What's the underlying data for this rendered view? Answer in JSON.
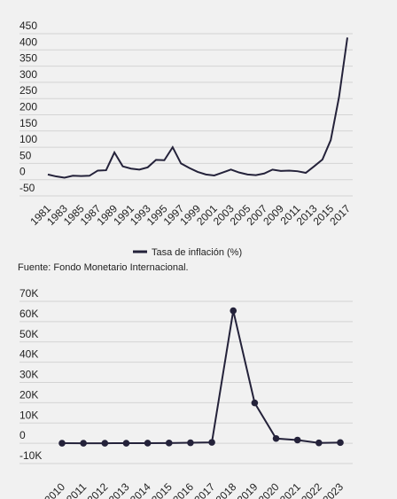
{
  "chart_data": [
    {
      "type": "line",
      "x": [
        1981,
        1982,
        1983,
        1984,
        1985,
        1986,
        1987,
        1988,
        1989,
        1990,
        1991,
        1992,
        1993,
        1994,
        1995,
        1996,
        1997,
        1998,
        1999,
        2000,
        2001,
        2002,
        2003,
        2004,
        2005,
        2006,
        2007,
        2008,
        2009,
        2010,
        2011,
        2012,
        2013,
        2014,
        2015,
        2016,
        2017
      ],
      "series": [
        {
          "name": "Tasa de inflación (%)",
          "color": "#24223a",
          "values": [
            16,
            10,
            6,
            12,
            11,
            12,
            28,
            29,
            84,
            41,
            34,
            31,
            38,
            61,
            60,
            100,
            50,
            36,
            24,
            16,
            13,
            22,
            31,
            22,
            16,
            14,
            19,
            31,
            27,
            28,
            26,
            21,
            41,
            62,
            122,
            255,
            438
          ]
        }
      ],
      "xlim": [
        1981,
        2017
      ],
      "xticks": [
        1981,
        1983,
        1985,
        1987,
        1989,
        1991,
        1993,
        1995,
        1997,
        1999,
        2001,
        2003,
        2005,
        2007,
        2009,
        2011,
        2013,
        2015,
        2017
      ],
      "ylim": [
        -50,
        450
      ],
      "yticks": [
        -50,
        0,
        50,
        100,
        150,
        200,
        250,
        300,
        350,
        400,
        450
      ],
      "grid": true,
      "legend": "bottom",
      "source": "Fuente: Fondo Monetario Internacional."
    },
    {
      "type": "line",
      "x": [
        2010,
        2011,
        2012,
        2013,
        2014,
        2015,
        2016,
        2017,
        2018,
        2019,
        2020,
        2021,
        2022,
        2023
      ],
      "series": [
        {
          "color": "#24223a",
          "values": [
            28,
            26,
            21,
            41,
            62,
            122,
            255,
            438,
            65374,
            19906,
            2355,
            1588,
            186,
            337
          ]
        }
      ],
      "xlim": [
        2010,
        2023
      ],
      "xticks": [
        2010,
        2011,
        2012,
        2013,
        2014,
        2015,
        2016,
        2017,
        2018,
        2019,
        2020,
        2021,
        2022,
        2023
      ],
      "ylim": [
        -10000,
        70000
      ],
      "yticks": [
        {
          "value": -10000,
          "label": "-10K"
        },
        0,
        {
          "value": 10000,
          "label": "10K"
        },
        {
          "value": 20000,
          "label": "20K"
        },
        {
          "value": 30000,
          "label": "30K"
        },
        {
          "value": 40000,
          "label": "40K"
        },
        {
          "value": 50000,
          "label": "50K"
        },
        {
          "value": 60000,
          "label": "60K"
        },
        {
          "value": 70000,
          "label": "70K"
        }
      ],
      "grid": true,
      "markers": true
    }
  ]
}
